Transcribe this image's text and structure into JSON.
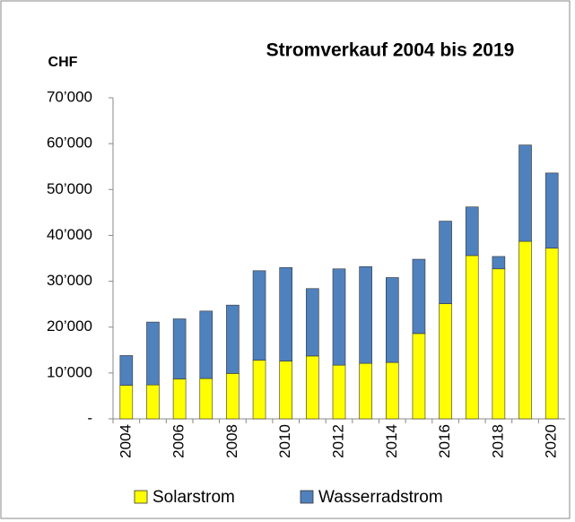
{
  "chart_data": {
    "type": "stacked_bar",
    "title": "Stromverkauf 2004 bis 2019",
    "y_label": "CHF",
    "categories": [
      "2004",
      null,
      "2006",
      null,
      "2008",
      null,
      "2010",
      null,
      "2012",
      null,
      "2014",
      null,
      "2016",
      null,
      "2018",
      null,
      "2020"
    ],
    "series": [
      {
        "name": "Solarstrom",
        "color": "#ffff00",
        "values": [
          7300,
          7400,
          8700,
          8800,
          9900,
          12800,
          12600,
          13700,
          11700,
          12100,
          12300,
          18600,
          25100,
          35600,
          32700,
          38700,
          37200
        ]
      },
      {
        "name": "Wasserradstrom",
        "color": "#4f81bd",
        "values": [
          6500,
          13700,
          13100,
          14700,
          14900,
          19500,
          20400,
          14700,
          21000,
          21100,
          18500,
          16200,
          18000,
          10600,
          2700,
          21000,
          16400
        ]
      }
    ],
    "ylim": [
      0,
      70000
    ],
    "yticks": [
      {
        "value": 0,
        "label": "-"
      },
      {
        "value": 10000,
        "label": "10’000"
      },
      {
        "value": 20000,
        "label": "20’000"
      },
      {
        "value": 30000,
        "label": "30’000"
      },
      {
        "value": 40000,
        "label": "40’000"
      },
      {
        "value": 50000,
        "label": "50’000"
      },
      {
        "value": 60000,
        "label": "60’000"
      },
      {
        "value": 70000,
        "label": "70’000"
      }
    ],
    "legend": "bottom"
  }
}
